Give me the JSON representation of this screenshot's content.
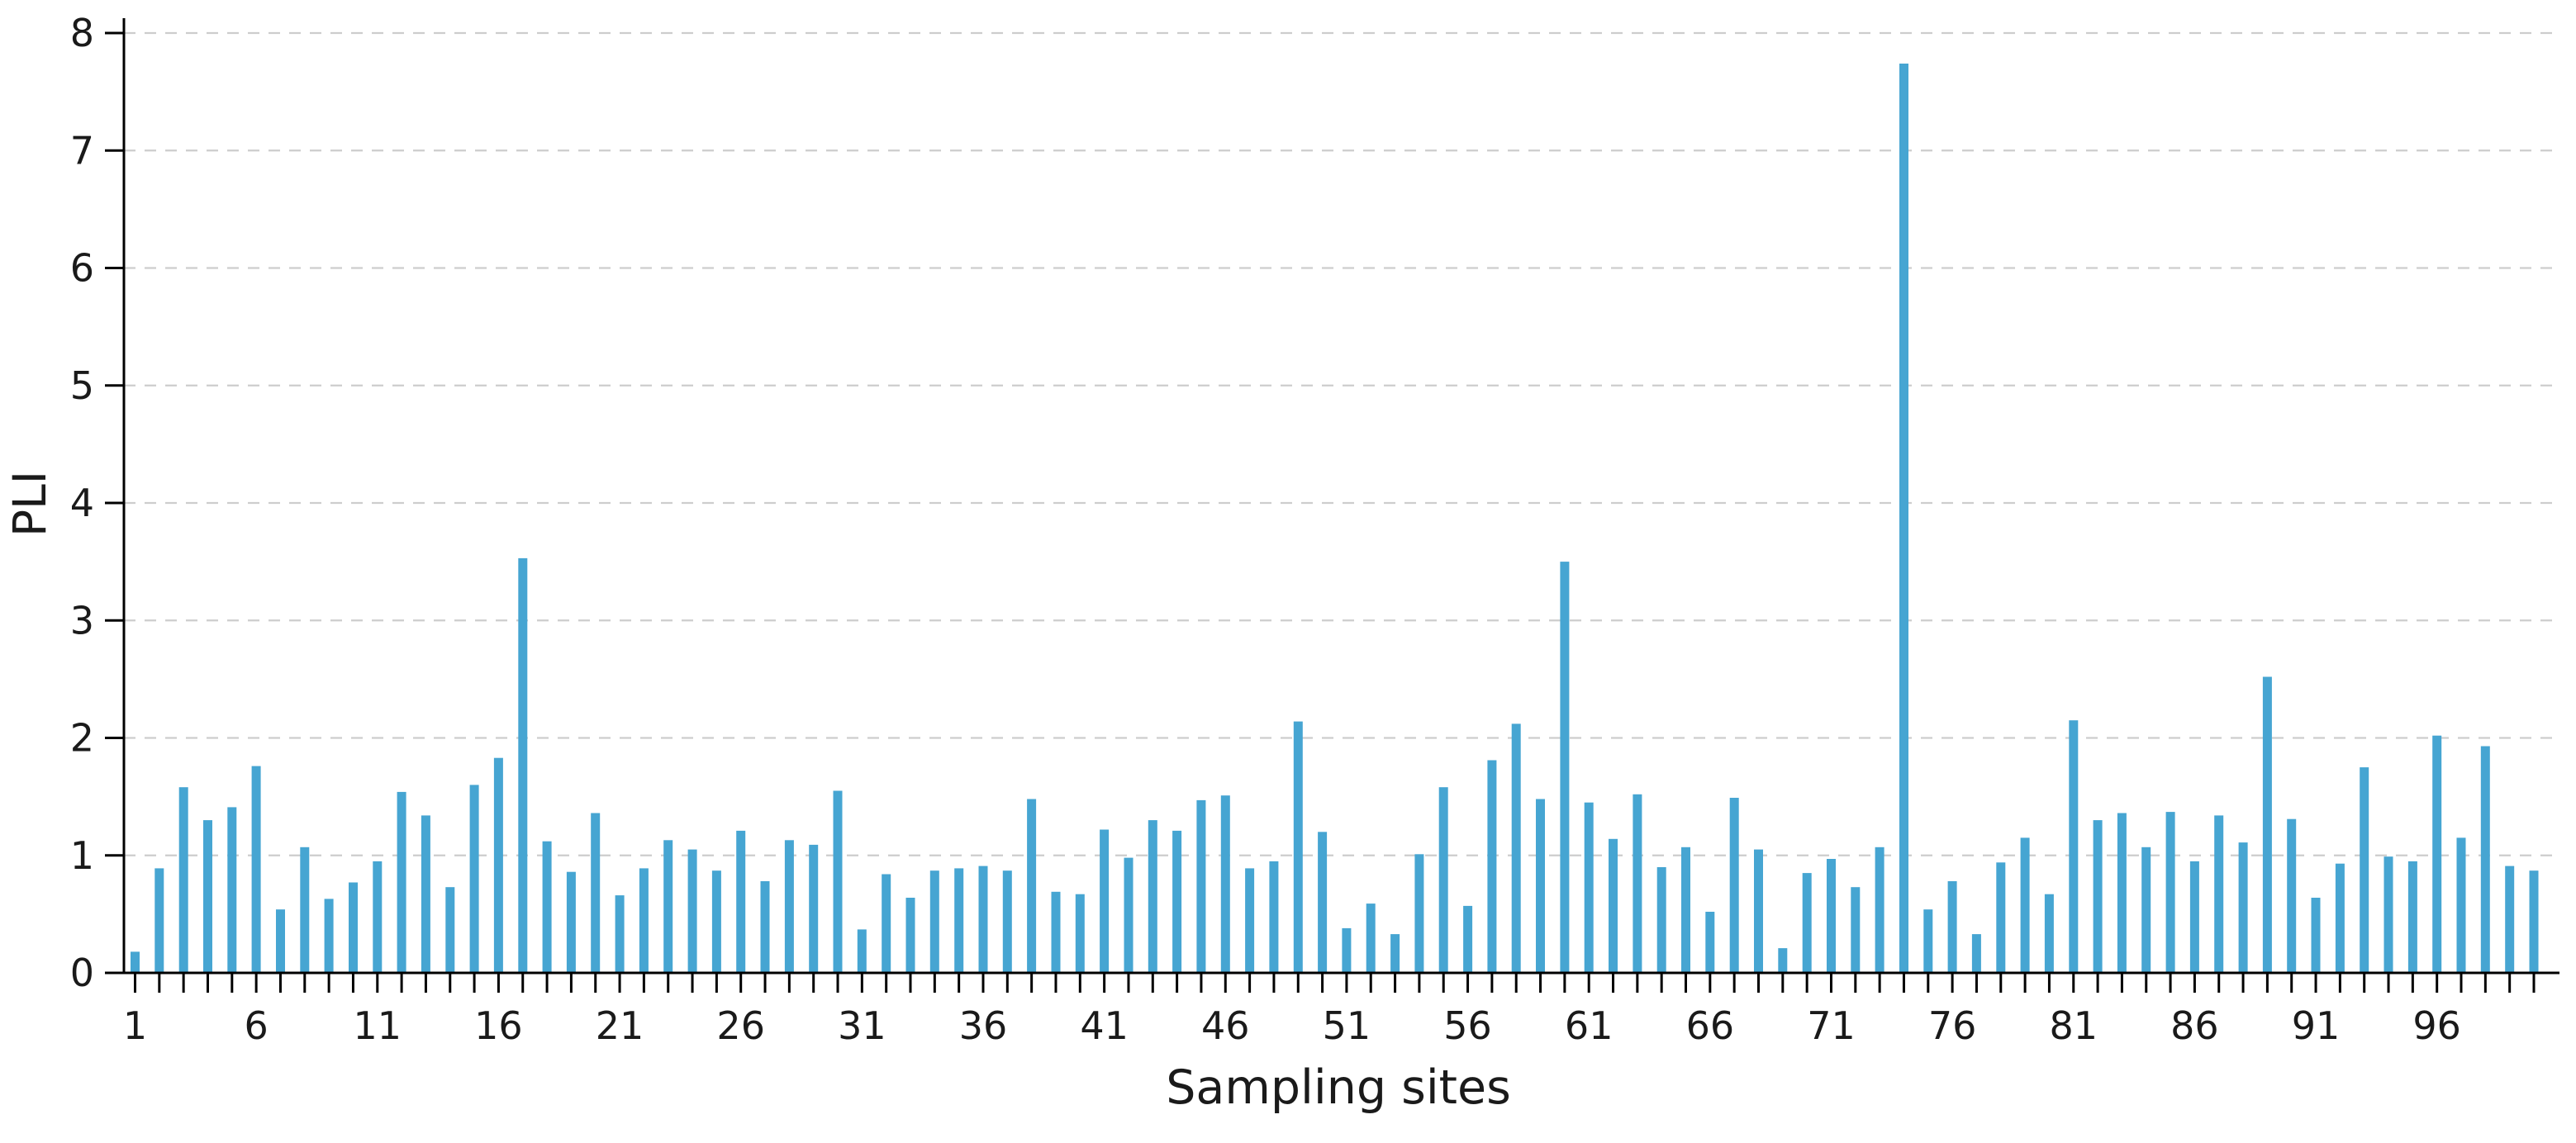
{
  "chart_data": {
    "type": "bar",
    "title": "",
    "xlabel": "Sampling sites",
    "ylabel": "PLI",
    "ylim": [
      0,
      8
    ],
    "yticks": [
      0,
      1,
      2,
      3,
      4,
      5,
      6,
      7,
      8
    ],
    "xtick_labels": [
      1,
      6,
      11,
      16,
      21,
      26,
      31,
      36,
      41,
      46,
      51,
      56,
      61,
      66,
      71,
      76,
      81,
      86,
      91,
      96
    ],
    "grid": "horizontal-dashed",
    "legend": "none",
    "bar_color": "#46a5d2",
    "grid_color": "#cdcdcd",
    "axis_color": "#000000",
    "text_color": "#1a1a1a",
    "categories": [
      1,
      2,
      3,
      4,
      5,
      6,
      7,
      8,
      9,
      10,
      11,
      12,
      13,
      14,
      15,
      16,
      17,
      18,
      19,
      20,
      21,
      22,
      23,
      24,
      25,
      26,
      27,
      28,
      29,
      30,
      31,
      32,
      33,
      34,
      35,
      36,
      37,
      38,
      39,
      40,
      41,
      42,
      43,
      44,
      45,
      46,
      47,
      48,
      49,
      50,
      51,
      52,
      53,
      54,
      55,
      56,
      57,
      58,
      59,
      60,
      61,
      62,
      63,
      64,
      65,
      66,
      67,
      68,
      69,
      70,
      71,
      72,
      73,
      74,
      75,
      76,
      77,
      78,
      79,
      80,
      81,
      82,
      83,
      84,
      85,
      86,
      87,
      88,
      89,
      90,
      91,
      92,
      93,
      94,
      95,
      96,
      97,
      98,
      99,
      100
    ],
    "values": [
      0.18,
      0.89,
      1.58,
      1.3,
      1.41,
      1.76,
      0.54,
      1.07,
      0.63,
      0.77,
      0.95,
      1.54,
      1.34,
      0.73,
      1.6,
      1.83,
      3.53,
      1.12,
      0.86,
      1.36,
      0.66,
      0.89,
      1.13,
      1.05,
      0.87,
      1.21,
      0.78,
      1.13,
      1.09,
      1.55,
      0.37,
      0.84,
      0.64,
      0.87,
      0.89,
      0.91,
      0.87,
      1.48,
      0.69,
      0.67,
      1.22,
      0.98,
      1.3,
      1.21,
      1.47,
      1.51,
      0.89,
      0.95,
      2.14,
      1.2,
      0.38,
      0.59,
      0.33,
      1.01,
      1.58,
      0.57,
      1.81,
      2.12,
      1.48,
      3.5,
      1.45,
      1.14,
      1.52,
      0.9,
      1.07,
      0.52,
      1.49,
      1.05,
      0.21,
      0.85,
      0.97,
      0.73,
      1.07,
      7.74,
      0.54,
      0.78,
      0.33,
      0.94,
      1.15,
      0.67,
      2.15,
      1.3,
      1.36,
      1.07,
      1.37,
      0.95,
      1.34,
      1.11,
      2.52,
      1.31,
      0.64,
      0.93,
      1.75,
      0.99,
      0.95,
      2.02,
      1.15,
      1.93,
      0.91,
      0.87
    ]
  }
}
